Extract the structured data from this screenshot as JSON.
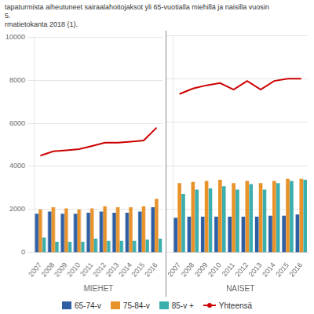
{
  "chart_data": [
    {
      "type": "bar",
      "title": "tapaturmista aiheutuneet sairaalahoitojaksot yli 65-vuotialla miehillä ja naisilla vuosin",
      "subtitle": "5.",
      "annotations": [
        "rmatietokanta 2018 (1)."
      ],
      "xlabel": "MIEHET",
      "categories": [
        "2007",
        "2008",
        "2009",
        "2010",
        "2011",
        "2012",
        "2013",
        "2014",
        "2015",
        "2016"
      ],
      "series": [
        {
          "name": "65-74-v",
          "color": "#2E5FA3",
          "values": [
            1800,
            1900,
            1800,
            1800,
            1850,
            1900,
            1850,
            1850,
            1900,
            2100
          ]
        },
        {
          "name": "75-84-v",
          "color": "#E8922A",
          "values": [
            2000,
            2100,
            2050,
            2000,
            2050,
            2150,
            2100,
            2100,
            2150,
            2500
          ]
        },
        {
          "name": "85-v +",
          "color": "#3BAEAE",
          "values": [
            700,
            500,
            500,
            500,
            650,
            550,
            550,
            550,
            600,
            650
          ]
        },
        {
          "name": "Yhteensä",
          "color": "#CC0000",
          "type": "line",
          "values": [
            4500,
            4700,
            4750,
            4800,
            4950,
            5100,
            5100,
            5150,
            5200,
            5800
          ]
        }
      ],
      "ylim": [
        0,
        10000
      ],
      "yticks": [
        0,
        2000,
        4000,
        6000,
        8000,
        10000
      ],
      "grid": true,
      "legend": "bottom"
    },
    {
      "type": "bar",
      "xlabel": "NAISET",
      "categories": [
        "2007",
        "2008",
        "2009",
        "2010",
        "2011",
        "2012",
        "2013",
        "2014",
        "2015",
        "2016"
      ],
      "series": [
        {
          "name": "65-74-v",
          "color": "#2E5FA3",
          "values": [
            1600,
            1650,
            1650,
            1650,
            1650,
            1650,
            1650,
            1700,
            1700,
            1750
          ]
        },
        {
          "name": "75-84-v",
          "color": "#E8922A",
          "values": [
            3200,
            3250,
            3300,
            3350,
            3200,
            3300,
            3200,
            3300,
            3400,
            3400
          ]
        },
        {
          "name": "85-v +",
          "color": "#3BAEAE",
          "values": [
            2700,
            2900,
            2950,
            3050,
            2900,
            3150,
            2900,
            3200,
            3300,
            3350
          ]
        },
        {
          "name": "Yhteensä",
          "color": "#CC0000",
          "type": "line",
          "values": [
            7300,
            7550,
            7700,
            7800,
            7500,
            7900,
            7500,
            7900,
            8000,
            8000
          ]
        }
      ],
      "ylim": [
        0,
        10000
      ],
      "yticks": [
        0,
        2000,
        4000,
        6000,
        8000,
        10000
      ],
      "grid": true,
      "tick_labels": "x"
    }
  ]
}
